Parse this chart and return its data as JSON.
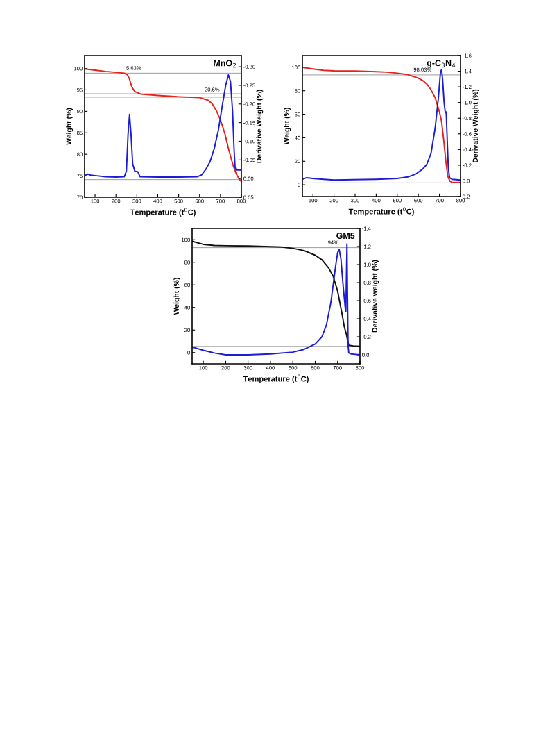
{
  "chart_data": [
    {
      "type": "line",
      "xlabel": "Temperature (t$^{0}$C)",
      "ylabel": "Weight (%)",
      "y2label": "Derivative Weight (%)",
      "annotations": [
        "MnO$_{2}$",
        {
          "text": "5.63%",
          "x": 285,
          "y": 99.4
        },
        {
          "text": "20.6%",
          "x": 660,
          "y": 94.4
        }
      ],
      "xlim": [
        50,
        800
      ],
      "xticks": [
        100,
        200,
        300,
        400,
        500,
        600,
        700,
        800
      ],
      "ylim": [
        70,
        103
      ],
      "yticks": [
        70,
        75,
        80,
        85,
        90,
        95,
        100
      ],
      "y2lim": [
        0.05,
        -0.33
      ],
      "y2ticks": [
        {
          "value": 0.05,
          "label": "0.05"
        },
        {
          "value": 0.0,
          "label": "0.00"
        },
        {
          "value": -0.05,
          "label": "-0.05"
        },
        {
          "value": -0.1,
          "label": "-0.10"
        },
        {
          "value": -0.15,
          "label": "-0.15"
        },
        {
          "value": -0.2,
          "label": "-0.20"
        },
        {
          "value": -0.25,
          "label": "-0.25"
        },
        {
          "value": -0.3,
          "label": "-0.30"
        }
      ],
      "ref_lines": [
        {
          "axis": "y",
          "value": 98.9,
          "color": "#999999"
        },
        {
          "axis": "y",
          "value": 94.1,
          "color": "#999999"
        },
        {
          "axis": "y",
          "value": 93.3,
          "color": "#999999"
        },
        {
          "axis": "y",
          "value": 74.1,
          "color": "#999999"
        }
      ],
      "series": [
        {
          "color": "#e3231c",
          "x": [
            50,
            100,
            150,
            200,
            240,
            255,
            265,
            275,
            290,
            320,
            400,
            500,
            600,
            640,
            660,
            680,
            700,
            720,
            740,
            760,
            775,
            790,
            800
          ],
          "values": [
            99.9,
            99.6,
            99.3,
            99.1,
            98.9,
            98.5,
            97.5,
            95.8,
            94.6,
            94.0,
            93.7,
            93.4,
            93.2,
            92.6,
            91.8,
            90.2,
            88.0,
            85.0,
            81.0,
            77.5,
            75.5,
            74.2,
            73.6
          ]
        },
        {
          "color": "#1c1cd6",
          "axis": "y2",
          "x": [
            50,
            65,
            80,
            100,
            150,
            200,
            240,
            250,
            258,
            265,
            272,
            280,
            290,
            305,
            315,
            400,
            500,
            590,
            610,
            630,
            650,
            670,
            690,
            710,
            725,
            738,
            748,
            758,
            765,
            770,
            775,
            800
          ],
          "values": [
            -0.008,
            -0.012,
            -0.009,
            -0.008,
            -0.005,
            -0.004,
            -0.005,
            -0.02,
            -0.12,
            -0.172,
            -0.12,
            -0.04,
            -0.02,
            -0.018,
            -0.005,
            -0.004,
            -0.004,
            -0.005,
            -0.01,
            -0.025,
            -0.045,
            -0.08,
            -0.13,
            -0.2,
            -0.25,
            -0.278,
            -0.26,
            -0.18,
            -0.08,
            -0.03,
            -0.023,
            -0.023
          ]
        }
      ]
    },
    {
      "type": "line",
      "xlabel": "Temperature (t$^{0}$C)",
      "ylabel": "Weight (%)",
      "y2label": "Derivative Weight (%)",
      "annotations": [
        "g-C$_{3}$N$_{4}$",
        {
          "text": "98.03%",
          "x": 620,
          "y": 95.5
        }
      ],
      "xlim": [
        50,
        800
      ],
      "xticks": [
        100,
        200,
        300,
        400,
        500,
        600,
        700,
        800
      ],
      "ylim": [
        -10,
        110
      ],
      "yticks": [
        0,
        20,
        40,
        60,
        80,
        100
      ],
      "y2lim": [
        0.2,
        -1.6
      ],
      "y2ticks": [
        {
          "value": 0.2,
          "label": "0.2"
        },
        {
          "value": 0.0,
          "label": "0.0"
        },
        {
          "value": -0.2,
          "label": "-0.2"
        },
        {
          "value": -0.4,
          "label": "-0.4"
        },
        {
          "value": -0.6,
          "label": "-0.6"
        },
        {
          "value": -0.8,
          "label": "-0.8"
        },
        {
          "value": -1.0,
          "label": "-1.0"
        },
        {
          "value": -1.2,
          "label": "-1.2"
        },
        {
          "value": -1.4,
          "label": "-1.4"
        },
        {
          "value": -1.6,
          "label": "-1.6"
        }
      ],
      "ref_lines": [
        {
          "axis": "y",
          "value": 93.5,
          "color": "#999999"
        },
        {
          "axis": "y",
          "value": 1.6,
          "color": "#999999"
        }
      ],
      "series": [
        {
          "color": "#e3231c",
          "x": [
            50,
            100,
            150,
            200,
            300,
            400,
            450,
            500,
            550,
            580,
            600,
            620,
            640,
            660,
            680,
            700,
            710,
            720,
            730,
            740,
            750,
            760,
            800
          ],
          "values": [
            100,
            98.6,
            97.4,
            97.0,
            96.8,
            96.2,
            95.9,
            95.0,
            93.7,
            92.0,
            90.7,
            88.8,
            85.8,
            80.9,
            74.0,
            62.0,
            54.0,
            38.5,
            20.7,
            7.0,
            3.0,
            2.0,
            2.0
          ]
        },
        {
          "color": "#1c1cd6",
          "axis": "y2",
          "x": [
            50,
            70,
            100,
            150,
            200,
            400,
            500,
            550,
            590,
            620,
            640,
            660,
            680,
            695,
            705,
            710,
            715,
            722,
            728,
            732,
            736,
            742,
            748,
            760,
            800
          ],
          "values": [
            -0.02,
            -0.04,
            -0.03,
            -0.02,
            -0.01,
            -0.02,
            -0.03,
            -0.05,
            -0.09,
            -0.15,
            -0.21,
            -0.35,
            -0.68,
            -1.06,
            -1.39,
            -1.42,
            -1.3,
            -1.0,
            -0.87,
            -0.88,
            -0.59,
            -0.17,
            -0.04,
            -0.02,
            -0.01
          ]
        }
      ]
    },
    {
      "type": "line",
      "xlabel": "Temperature (t$^{0}$C)",
      "ylabel": "Weight (%)",
      "y2label": "Derivative weight (%)",
      "annotations": [
        "GM5",
        {
          "text": "94%",
          "x": 680,
          "y": 95
        }
      ],
      "xlim": [
        50,
        800
      ],
      "xticks": [
        100,
        200,
        300,
        400,
        500,
        600,
        700,
        800
      ],
      "ylim": [
        -10,
        110
      ],
      "yticks": [
        0,
        20,
        40,
        60,
        80,
        100
      ],
      "y2lim": [
        0.1,
        -1.4
      ],
      "y2ticks": [
        {
          "value": 0.0,
          "label": "0.0"
        },
        {
          "value": -0.2,
          "label": "-0.2"
        },
        {
          "value": -0.4,
          "label": "-0.4"
        },
        {
          "value": -0.6,
          "label": "-0.6"
        },
        {
          "value": -0.8,
          "label": "-0.8"
        },
        {
          "value": -1.0,
          "label": "-1.0"
        },
        {
          "value": -1.2,
          "label": "-1.2"
        },
        {
          "value": -1.4,
          "label": "-1.4"
        }
      ],
      "ref_lines": [
        {
          "axis": "y",
          "value": 93,
          "color": "#999999"
        },
        {
          "axis": "y",
          "value": 5.5,
          "color": "#999999"
        }
      ],
      "series": [
        {
          "color": "#111111",
          "x": [
            50,
            100,
            150,
            200,
            300,
            400,
            450,
            500,
            550,
            600,
            630,
            660,
            680,
            700,
            710,
            720,
            730,
            740,
            745,
            750,
            770,
            800
          ],
          "values": [
            98.6,
            95.9,
            94.9,
            94.7,
            94.5,
            93.9,
            93.5,
            92.4,
            90.4,
            86.3,
            82.2,
            75.0,
            67.9,
            54.6,
            44.4,
            34.2,
            22.9,
            15.7,
            10.6,
            6.5,
            5.9,
            5.5
          ]
        },
        {
          "color": "#1c1cd6",
          "axis": "y2",
          "x": [
            50,
            60,
            100,
            150,
            200,
            300,
            400,
            500,
            550,
            600,
            630,
            650,
            670,
            690,
            700,
            707,
            715,
            725,
            735,
            737,
            740,
            742,
            744,
            747,
            750,
            760,
            800
          ],
          "values": [
            -0.08,
            -0.08,
            -0.05,
            -0.02,
            0.0,
            0.0,
            -0.01,
            -0.03,
            -0.06,
            -0.12,
            -0.2,
            -0.33,
            -0.58,
            -0.96,
            -1.13,
            -1.17,
            -1.06,
            -0.76,
            -0.5,
            -0.48,
            -0.96,
            -1.23,
            -0.71,
            -0.1,
            -0.02,
            -0.01,
            0.0
          ]
        }
      ]
    }
  ]
}
